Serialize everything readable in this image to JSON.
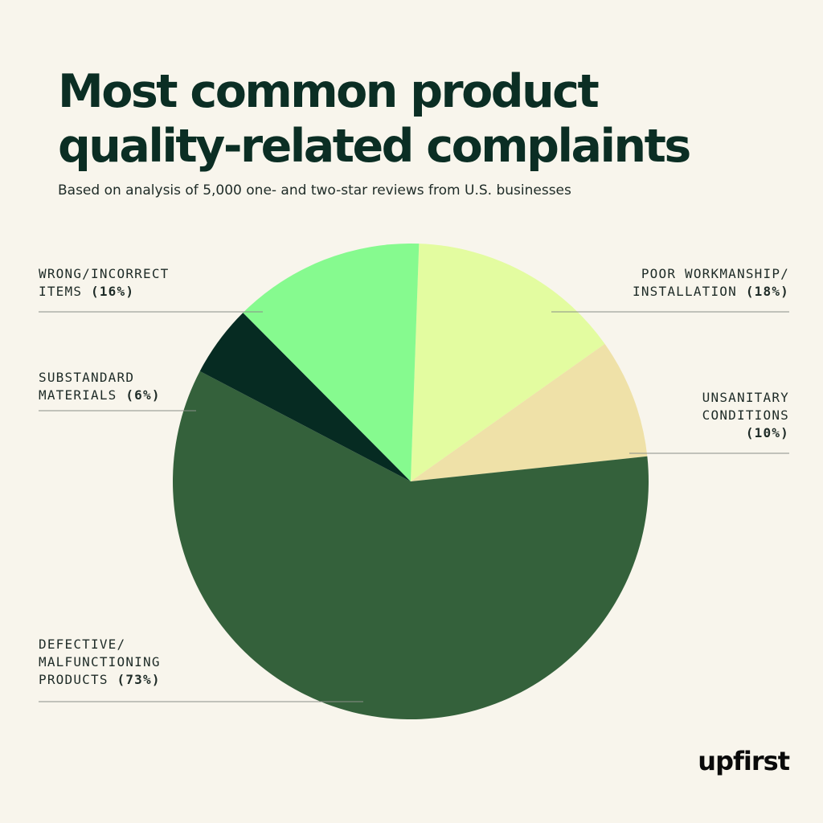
{
  "title_lines": [
    "Most common product",
    "quality-related complaints"
  ],
  "subtitle": "Based on analysis of 5,000 one- and two-star reviews from U.S. businesses",
  "logo_text": "upfirst",
  "chart_data": {
    "type": "pie",
    "title": "Most common product quality-related complaints",
    "subtitle": "Based on analysis of 5,000 one- and two-star reviews from U.S. businesses",
    "start_angle_deg": 2,
    "direction": "clockwise",
    "slices": [
      {
        "label_lines": [
          "POOR WORKMANSHIP/",
          "INSTALLATION"
        ],
        "value": 18,
        "value_text": "(18%)",
        "color": "#e3fca0"
      },
      {
        "label_lines": [
          "UNSANITARY",
          "CONDITIONS"
        ],
        "value": 10,
        "value_text": "(10%)",
        "color": "#efe1a8"
      },
      {
        "label_lines": [
          "DEFECTIVE/",
          "MALFUNCTIONING",
          "PRODUCTS"
        ],
        "value": 73,
        "value_text": "(73%)",
        "color": "#34613b"
      },
      {
        "label_lines": [
          "SUBSTANDARD",
          "MATERIALS"
        ],
        "value": 6,
        "value_text": "(6%)",
        "color": "#062b22"
      },
      {
        "label_lines": [
          "WRONG/INCORRECT",
          "ITEMS"
        ],
        "value": 16,
        "value_text": "(16%)",
        "color": "#86fa8f"
      }
    ]
  }
}
